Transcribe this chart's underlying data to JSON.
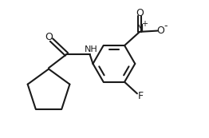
{
  "bg_color": "#ffffff",
  "line_color": "#1a1a1a",
  "line_width": 1.5,
  "fig_width": 2.62,
  "fig_height": 1.73,
  "dpi": 100,
  "xlim": [
    0,
    9.5
  ],
  "ylim": [
    0.5,
    7.0
  ]
}
